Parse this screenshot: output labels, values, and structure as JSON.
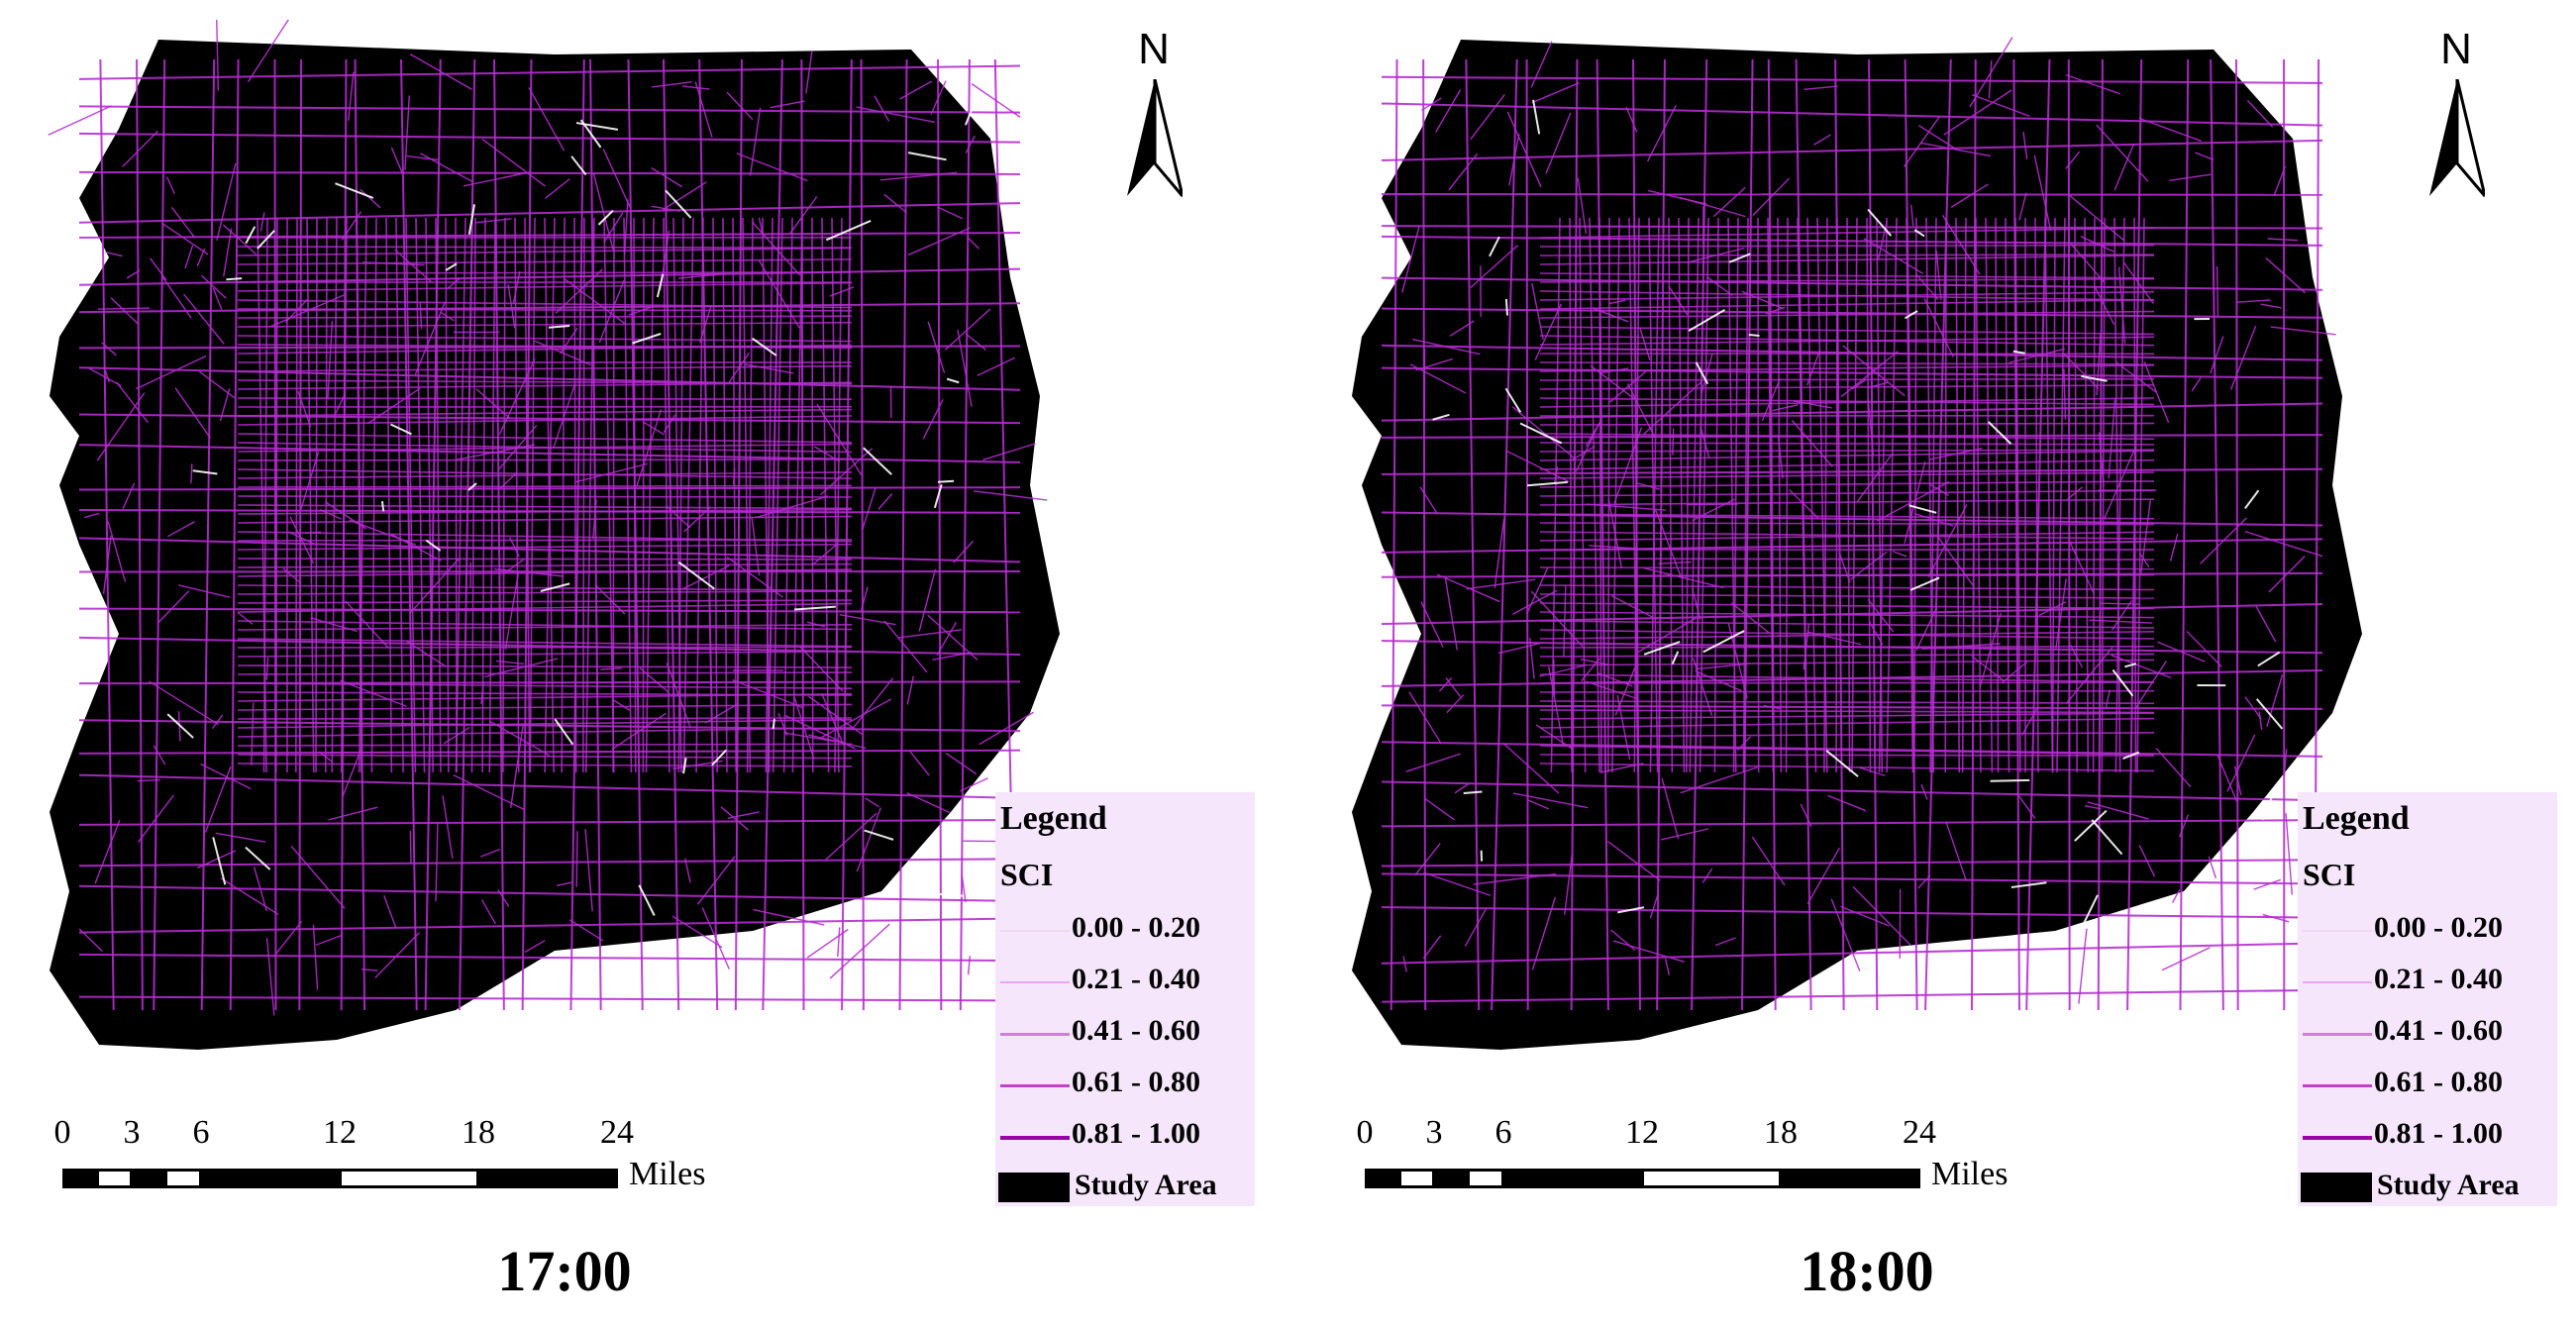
{
  "panels": [
    {
      "time_label": "17:00",
      "north_label": "N",
      "legend_title": "Legend",
      "legend_subtitle": "SCI",
      "legend_classes": [
        {
          "label": "0.00 - 0.20",
          "color": "#f3d4f6"
        },
        {
          "label": "0.21 - 0.40",
          "color": "#e7a8ee"
        },
        {
          "label": "0.41 - 0.60",
          "color": "#d67ae0"
        },
        {
          "label": "0.61 - 0.80",
          "color": "#bd42cc"
        },
        {
          "label": "0.81 - 1.00",
          "color": "#9b00ab"
        }
      ],
      "study_area_label": "Study Area",
      "scale_ticks": [
        "0",
        "3",
        "6",
        "12",
        "18",
        "24"
      ],
      "scale_units": "Miles"
    },
    {
      "time_label": "18:00",
      "north_label": "N",
      "legend_title": "Legend",
      "legend_subtitle": "SCI",
      "legend_classes": [
        {
          "label": "0.00 - 0.20",
          "color": "#f3d4f6"
        },
        {
          "label": "0.21 - 0.40",
          "color": "#e7a8ee"
        },
        {
          "label": "0.41 - 0.60",
          "color": "#d67ae0"
        },
        {
          "label": "0.61 - 0.80",
          "color": "#bd42cc"
        },
        {
          "label": "0.81 - 1.00",
          "color": "#9b00ab"
        }
      ],
      "study_area_label": "Study Area",
      "scale_ticks": [
        "0",
        "3",
        "6",
        "12",
        "18",
        "24"
      ],
      "scale_units": "Miles"
    }
  ],
  "colors": {
    "study_area": "#000000",
    "road_network": "#b52bd0",
    "road_highlight": "#ffffff",
    "legend_bg": "#f6e6fb"
  }
}
